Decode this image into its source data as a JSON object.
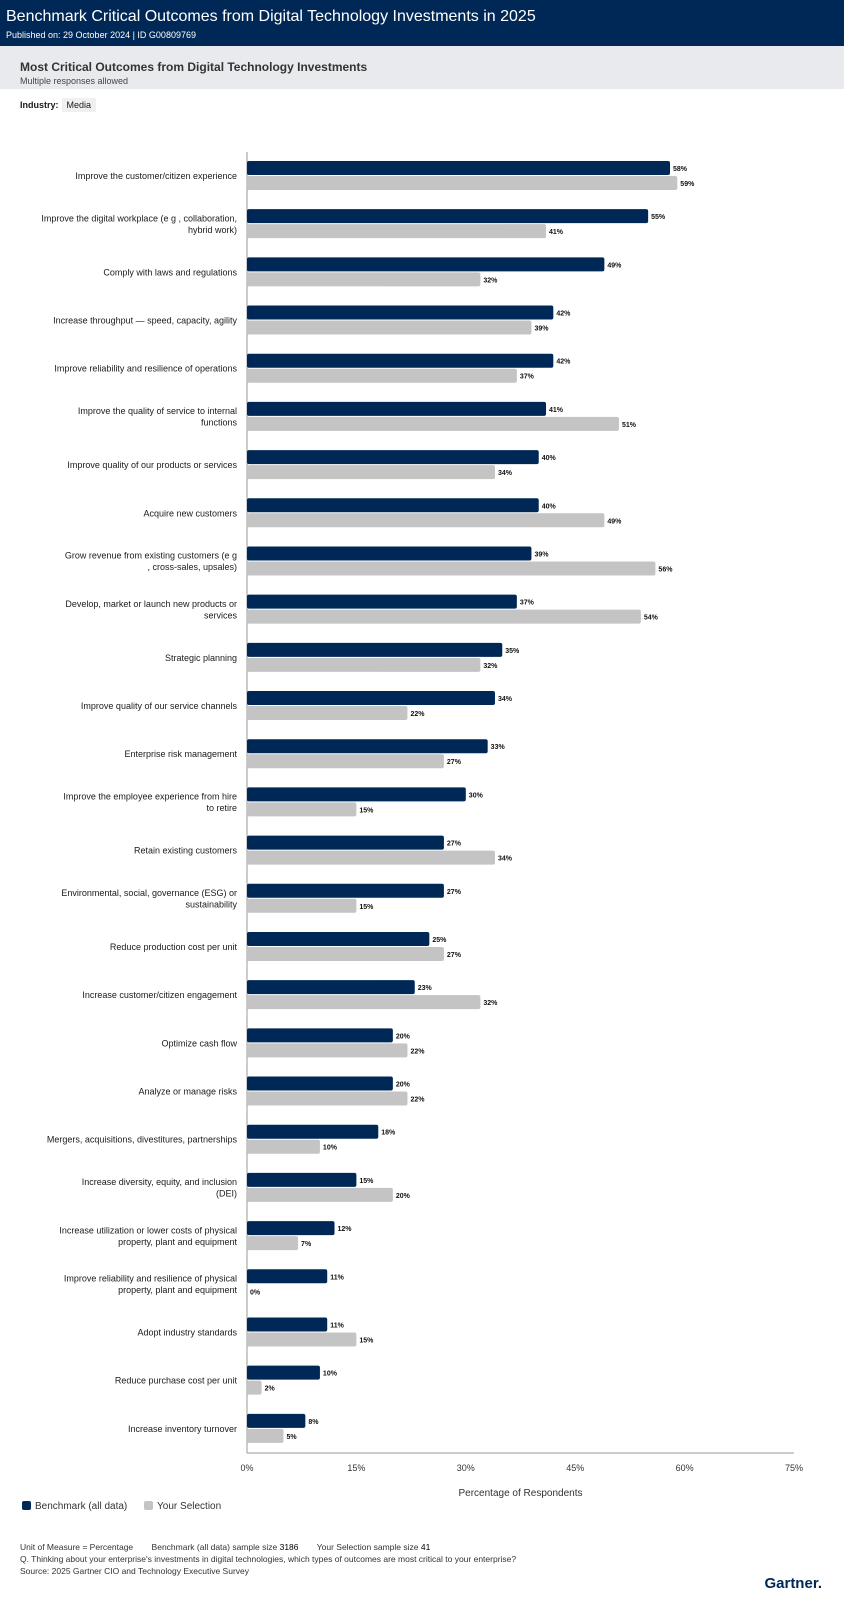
{
  "header": {
    "title": "Benchmark Critical Outcomes from Digital Technology Investments in 2025",
    "published": "Published on: 29 October 2024 | ID G00809769"
  },
  "section": {
    "title": "Most Critical Outcomes from Digital Technology Investments",
    "subtitle": "Multiple responses allowed"
  },
  "filter": {
    "label": "Industry:",
    "value": "Media"
  },
  "colors": {
    "benchmark": "#002856",
    "selection": "#c4c4c4",
    "axis": "#999999"
  },
  "chart_data": {
    "type": "bar",
    "orientation": "horizontal",
    "xlabel": "Percentage of Respondents",
    "xlim": [
      0,
      75
    ],
    "xticks": [
      "0%",
      "15%",
      "30%",
      "45%",
      "60%",
      "75%"
    ],
    "categories": [
      "Improve the customer/citizen experience",
      "Improve the digital workplace (e g , collaboration, hybrid work)",
      "Comply with laws and regulations",
      "Increase throughput — speed, capacity, agility",
      "Improve reliability and resilience of operations",
      "Improve the quality of service to internal functions",
      "Improve quality of our products or services",
      "Acquire new customers",
      "Grow revenue from existing customers (e g , cross-sales, upsales)",
      "Develop, market or launch new products or services",
      "Strategic planning",
      "Improve quality of our service channels",
      "Enterprise risk management",
      "Improve the employee experience from hire to retire",
      "Retain existing customers",
      "Environmental, social, governance (ESG) or sustainability",
      "Reduce production cost per unit",
      "Increase customer/citizen engagement",
      "Optimize cash flow",
      "Analyze or manage risks",
      "Mergers, acquisitions, divestitures, partnerships",
      "Increase diversity, equity, and inclusion (DEI)",
      "Increase utilization or lower costs of physical property, plant and equipment",
      "Improve reliability and resilience of physical property, plant and equipment",
      "Adopt industry standards",
      "Reduce purchase cost per unit",
      "Increase inventory turnover"
    ],
    "label_lines": [
      [
        "Improve the customer/citizen experience"
      ],
      [
        "Improve the digital workplace (e g , collaboration,",
        "hybrid work)"
      ],
      [
        "Comply with laws and regulations"
      ],
      [
        "Increase throughput — speed, capacity, agility"
      ],
      [
        "Improve reliability and resilience of operations"
      ],
      [
        "Improve the quality of service to internal",
        "functions"
      ],
      [
        "Improve quality of our products or services"
      ],
      [
        "Acquire new customers"
      ],
      [
        "Grow revenue from existing customers (e g",
        ", cross-sales, upsales)"
      ],
      [
        "Develop, market or launch new products or",
        "services"
      ],
      [
        "Strategic planning"
      ],
      [
        "Improve quality of our service channels"
      ],
      [
        "Enterprise risk management"
      ],
      [
        "Improve the employee experience from hire",
        "to retire"
      ],
      [
        "Retain existing customers"
      ],
      [
        "Environmental, social, governance (ESG) or",
        "sustainability"
      ],
      [
        "Reduce production cost per unit"
      ],
      [
        "Increase customer/citizen engagement"
      ],
      [
        "Optimize cash flow"
      ],
      [
        "Analyze or manage risks"
      ],
      [
        "Mergers, acquisitions, divestitures, partnerships"
      ],
      [
        "Increase diversity, equity, and inclusion",
        "(DEI)"
      ],
      [
        "Increase utilization or lower costs of physical",
        "property, plant and equipment"
      ],
      [
        "Improve reliability and resilience of physical",
        "property, plant and equipment"
      ],
      [
        "Adopt industry standards"
      ],
      [
        "Reduce purchase cost per unit"
      ],
      [
        "Increase inventory turnover"
      ]
    ],
    "series": [
      {
        "name": "Benchmark (all data)",
        "values": [
          58,
          55,
          49,
          42,
          42,
          41,
          40,
          40,
          39,
          37,
          35,
          34,
          33,
          30,
          27,
          27,
          25,
          23,
          20,
          20,
          18,
          15,
          12,
          11,
          11,
          10,
          8
        ]
      },
      {
        "name": "Your Selection",
        "values": [
          59,
          41,
          32,
          39,
          37,
          51,
          34,
          49,
          56,
          54,
          32,
          22,
          27,
          15,
          34,
          15,
          27,
          32,
          22,
          22,
          10,
          20,
          7,
          0,
          15,
          2,
          5
        ]
      }
    ],
    "legend_position": "bottom-left",
    "grid": false
  },
  "legend": {
    "benchmark": "Benchmark (all data)",
    "selection": "Your Selection"
  },
  "footer": {
    "unit": "Unit of Measure = Percentage",
    "benchmark_size_label": "Benchmark (all data) sample size",
    "benchmark_size": "3186",
    "selection_size_label": "Your Selection sample size",
    "selection_size": "41",
    "question": "Q. Thinking about your enterprise's investments in digital technologies, which types of outcomes are most critical to your enterprise?",
    "source": "Source: 2025 Gartner CIO and Technology Executive Survey"
  },
  "brand": "Gartner."
}
